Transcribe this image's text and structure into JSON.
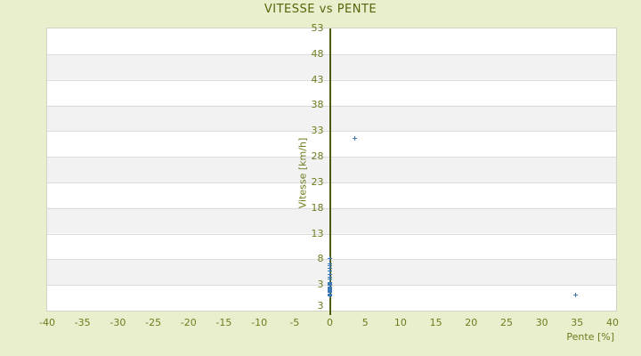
{
  "page": {
    "background_color": "#e9eecd",
    "text_color_olive": "#6e7c1e",
    "title_color": "#55650a"
  },
  "chart_data": {
    "type": "scatter",
    "title": "VITESSE vs PENTE",
    "xlabel": "Pente [%]",
    "ylabel": "Vitesse [km/h]",
    "xlim": [
      -40,
      40.5
    ],
    "ylim": [
      -2,
      53
    ],
    "xticks": [
      -40,
      -35,
      -30,
      -25,
      -20,
      -15,
      -10,
      -5,
      0,
      5,
      10,
      15,
      20,
      25,
      30,
      35,
      40
    ],
    "yticks": [
      53,
      48,
      43,
      38,
      33,
      28,
      23,
      18,
      13,
      8,
      3
    ],
    "y_axis_bottom_label": "3",
    "grid": "horizontal alternating bands white / #f2f2f2 with lines every 5 units",
    "legend": "none",
    "marker": "plus",
    "marker_color": "#3b77b5",
    "axis_line_color": "#4f5b07",
    "axis_line_at_x": 0,
    "series": [
      {
        "name": "vitesse-vs-pente-points",
        "points": [
          [
            3.6,
            31.5
          ],
          [
            34.8,
            1.0
          ],
          [
            0,
            8.0
          ],
          [
            0,
            7.0
          ],
          [
            0,
            6.7
          ],
          [
            0,
            6.1
          ],
          [
            0,
            5.7
          ],
          [
            0,
            5.0
          ],
          [
            0,
            4.4
          ],
          [
            0,
            4.0
          ],
          [
            0,
            3.4
          ],
          [
            0,
            3.2
          ],
          [
            0,
            3.0
          ],
          [
            0,
            2.8
          ],
          [
            0,
            2.6
          ],
          [
            0,
            2.4
          ],
          [
            0,
            2.2
          ],
          [
            0,
            2.0
          ],
          [
            0,
            1.8
          ],
          [
            0,
            1.6
          ],
          [
            0,
            1.4
          ],
          [
            0,
            1.2
          ],
          [
            0,
            1.0
          ],
          [
            0,
            0.8
          ]
        ]
      }
    ]
  }
}
